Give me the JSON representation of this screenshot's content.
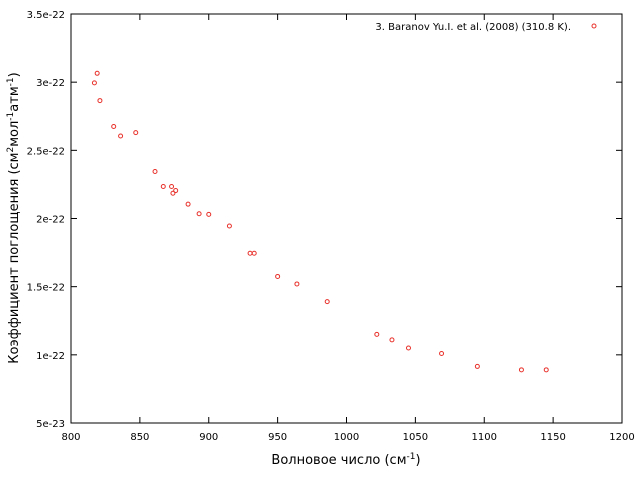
{
  "chart_data": {
    "type": "scatter",
    "title": "",
    "xlabel": "Волновое число (см",
    "xlabel_sup": "-1",
    "xlabel_end": ")",
    "ylabel_parts": [
      "Коэффициент поглощения (см",
      "2",
      "мол",
      "-1",
      "атм",
      "-1",
      ")"
    ],
    "xlim": [
      800,
      1200
    ],
    "ylim": [
      5e-23,
      3.5e-22
    ],
    "xticks": [
      800,
      850,
      900,
      950,
      1000,
      1050,
      1100,
      1150,
      1200
    ],
    "yticks": [
      5e-23,
      1e-22,
      1.5e-22,
      2e-22,
      2.5e-22,
      3e-22,
      3.5e-22
    ],
    "yticklabels": [
      "5e-23",
      "1e-22",
      "1.5e-22",
      "2e-22",
      "2.5e-22",
      "3e-22",
      "3.5e-22"
    ],
    "grid": false,
    "legend_position": "top-right",
    "series": [
      {
        "name": "3. Baranov Yu.I. et al. (2008) (310.8 K).",
        "color": "#e8302a",
        "marker": "open-circle",
        "points": [
          [
            817,
            2.995e-22
          ],
          [
            819,
            3.065e-22
          ],
          [
            821,
            2.865e-22
          ],
          [
            831,
            2.675e-22
          ],
          [
            836,
            2.605e-22
          ],
          [
            847,
            2.63e-22
          ],
          [
            861,
            2.345e-22
          ],
          [
            867,
            2.235e-22
          ],
          [
            873,
            2.235e-22
          ],
          [
            874,
            2.185e-22
          ],
          [
            876,
            2.205e-22
          ],
          [
            885,
            2.105e-22
          ],
          [
            893,
            2.035e-22
          ],
          [
            900,
            2.03e-22
          ],
          [
            915,
            1.945e-22
          ],
          [
            930,
            1.745e-22
          ],
          [
            933,
            1.745e-22
          ],
          [
            950,
            1.575e-22
          ],
          [
            964,
            1.52e-22
          ],
          [
            986,
            1.39e-22
          ],
          [
            1022,
            1.15e-22
          ],
          [
            1033,
            1.11e-22
          ],
          [
            1045,
            1.05e-22
          ],
          [
            1069,
            1.01e-22
          ],
          [
            1095,
            9.15e-23
          ],
          [
            1127,
            8.9e-23
          ],
          [
            1145,
            8.9e-23
          ]
        ]
      }
    ]
  }
}
